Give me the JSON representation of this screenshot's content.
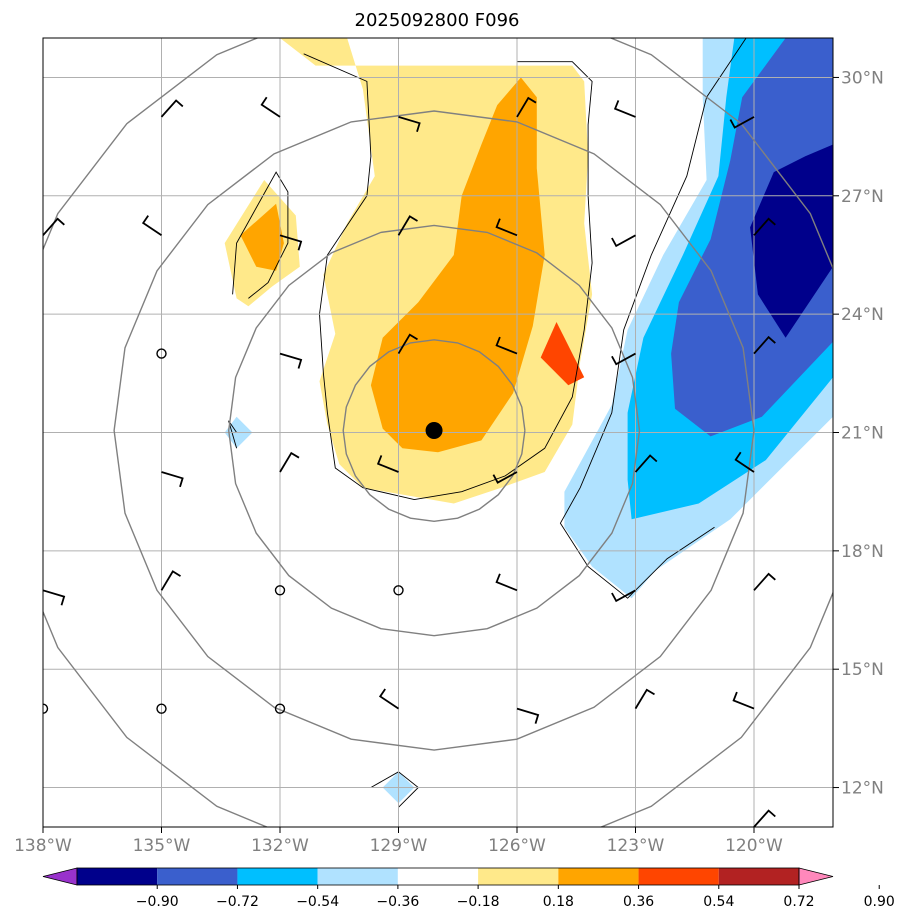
{
  "chart_data": {
    "type": "heatmap",
    "title": "2025092800 F096",
    "xlim": [
      -138.0,
      -118.0
    ],
    "ylim": [
      11.0,
      31.0
    ],
    "x_ticks": [
      {
        "value": -138,
        "label": "138°W"
      },
      {
        "value": -135,
        "label": "135°W"
      },
      {
        "value": -132,
        "label": "132°W"
      },
      {
        "value": -129,
        "label": "129°W"
      },
      {
        "value": -126,
        "label": "126°W"
      },
      {
        "value": -123,
        "label": "123°W"
      },
      {
        "value": -120,
        "label": "120°W"
      }
    ],
    "y_ticks": [
      {
        "value": 30,
        "label": "30°N"
      },
      {
        "value": 27,
        "label": "27°N"
      },
      {
        "value": 24,
        "label": "24°N"
      },
      {
        "value": 21,
        "label": "21°N"
      },
      {
        "value": 18,
        "label": "18°N"
      },
      {
        "value": 15,
        "label": "15°N"
      },
      {
        "value": 12,
        "label": "12°N"
      }
    ],
    "grid": true,
    "center": {
      "lon": -128.1,
      "lat": 21.05
    },
    "range_rings_deg": [
      2.3,
      5.2,
      8.1,
      11.0
    ],
    "colorbar": {
      "location": "bottom",
      "boundaries": [
        "−0.90",
        "−0.72",
        "−0.54",
        "−0.36",
        "−0.18",
        "0.18",
        "0.36",
        "0.54",
        "0.72",
        "0.90"
      ],
      "colors": [
        "#9932cc",
        "#00008b",
        "#3a5fcd",
        "#00bfff",
        "#b0e2ff",
        "#ffffff",
        "#ffe98a",
        "#ffa500",
        "#ff4500",
        "#b22222",
        "#ff88bb"
      ]
    },
    "filled_regions": [
      {
        "level": "−0.36",
        "color": "#b0e2ff",
        "points": [
          [
            -121.3,
            31
          ],
          [
            -118,
            31
          ],
          [
            -118,
            21.4
          ],
          [
            -120.6,
            18.8
          ],
          [
            -122.5,
            17.5
          ],
          [
            -123.1,
            16.8
          ],
          [
            -124.1,
            17.6
          ],
          [
            -124.8,
            18.6
          ],
          [
            -124.8,
            19.5
          ],
          [
            -123.6,
            21.7
          ],
          [
            -123.2,
            23.6
          ],
          [
            -122.3,
            25.5
          ],
          [
            -121.2,
            27.4
          ],
          [
            -121.3,
            29.5
          ]
        ]
      },
      {
        "level": "−0.54",
        "color": "#00bfff",
        "points": [
          [
            -120.5,
            31
          ],
          [
            -118,
            31
          ],
          [
            -118,
            22.4
          ],
          [
            -119.7,
            20.3
          ],
          [
            -121.4,
            19.2
          ],
          [
            -123.1,
            18.8
          ],
          [
            -123.2,
            19.8
          ],
          [
            -123.2,
            21.5
          ],
          [
            -122.8,
            23.4
          ],
          [
            -121.8,
            25.5
          ],
          [
            -120.9,
            27.5
          ],
          [
            -120.7,
            29.5
          ]
        ]
      },
      {
        "level": "−0.72",
        "color": "#3a5fcd",
        "points": [
          [
            -119.2,
            31
          ],
          [
            -118,
            31
          ],
          [
            -118,
            23.3
          ],
          [
            -119.8,
            21.4
          ],
          [
            -121.1,
            20.9
          ],
          [
            -122.0,
            21.6
          ],
          [
            -122.1,
            23.0
          ],
          [
            -121.9,
            24.3
          ],
          [
            -121.1,
            25.9
          ],
          [
            -120.6,
            27.9
          ],
          [
            -120.3,
            29.5
          ]
        ]
      },
      {
        "level": "−0.90",
        "color": "#00008b",
        "points": [
          [
            -118,
            28.3
          ],
          [
            -118,
            25.2
          ],
          [
            -119.2,
            23.4
          ],
          [
            -119.9,
            24.5
          ],
          [
            -120.1,
            26.2
          ],
          [
            -119.5,
            27.6
          ],
          [
            -118.7,
            28.0
          ]
        ]
      },
      {
        "level": "−0.36",
        "color": "#b0e2ff",
        "points": [
          [
            -133.4,
            21.0
          ],
          [
            -133.1,
            21.4
          ],
          [
            -132.7,
            21.0
          ],
          [
            -133.1,
            20.6
          ]
        ]
      },
      {
        "level": "−0.36",
        "color": "#b0e2ff",
        "points": [
          [
            -129.4,
            12.0
          ],
          [
            -129.0,
            12.4
          ],
          [
            -128.6,
            12.0
          ],
          [
            -129.0,
            11.6
          ]
        ]
      },
      {
        "level": "0.18",
        "color": "#ffe98a",
        "points": [
          [
            -131.1,
            30.3
          ],
          [
            -132.0,
            31.0
          ],
          [
            -130.3,
            31.0
          ],
          [
            -129.9,
            29.7
          ],
          [
            -129.6,
            27.5
          ],
          [
            -130.3,
            26.3
          ],
          [
            -130.9,
            25.0
          ],
          [
            -130.6,
            23.5
          ],
          [
            -131.0,
            22.3
          ],
          [
            -130.8,
            21.2
          ],
          [
            -130.5,
            20.2
          ],
          [
            -129.9,
            19.6
          ],
          [
            -127.6,
            19.2
          ],
          [
            -126.4,
            19.6
          ],
          [
            -125.3,
            20.0
          ],
          [
            -124.6,
            21.2
          ],
          [
            -124.4,
            22.8
          ],
          [
            -124.1,
            24.5
          ],
          [
            -124.3,
            26.3
          ],
          [
            -124.2,
            28.0
          ],
          [
            -124.3,
            29.9
          ],
          [
            -124.6,
            30.3
          ],
          [
            -125.7,
            30.3
          ]
        ]
      },
      {
        "level": "0.36",
        "color": "#ffa500",
        "points": [
          [
            -125.9,
            30.0
          ],
          [
            -125.5,
            29.5
          ],
          [
            -125.5,
            27.7
          ],
          [
            -125.3,
            25.5
          ],
          [
            -125.6,
            23.7
          ],
          [
            -126.1,
            22.0
          ],
          [
            -126.9,
            20.8
          ],
          [
            -128.0,
            20.5
          ],
          [
            -128.9,
            20.6
          ],
          [
            -129.4,
            21.1
          ],
          [
            -129.7,
            22.2
          ],
          [
            -129.4,
            23.4
          ],
          [
            -128.5,
            24.3
          ],
          [
            -127.6,
            25.5
          ],
          [
            -127.4,
            27.0
          ],
          [
            -126.9,
            28.3
          ],
          [
            -126.5,
            29.3
          ]
        ]
      },
      {
        "level": "0.54",
        "color": "#ff4500",
        "points": [
          [
            -125.0,
            23.8
          ],
          [
            -125.4,
            22.9
          ],
          [
            -124.7,
            22.2
          ],
          [
            -124.3,
            22.4
          ]
        ]
      },
      {
        "level": "0.18",
        "color": "#ffe98a",
        "points": [
          [
            -133.1,
            24.4
          ],
          [
            -133.4,
            25.8
          ],
          [
            -132.4,
            27.4
          ],
          [
            -131.6,
            26.5
          ],
          [
            -131.5,
            25.2
          ],
          [
            -132.2,
            24.7
          ],
          [
            -132.8,
            24.2
          ]
        ]
      },
      {
        "level": "0.36",
        "color": "#ffa500",
        "points": [
          [
            -132.6,
            25.2
          ],
          [
            -133.0,
            26.0
          ],
          [
            -132.1,
            26.8
          ],
          [
            -131.9,
            25.8
          ],
          [
            -132.1,
            25.1
          ]
        ]
      }
    ],
    "contour_lines": [
      {
        "points": [
          [
            -120.2,
            31
          ],
          [
            -121.2,
            29.5
          ],
          [
            -121.7,
            27.5
          ],
          [
            -122.6,
            25.5
          ],
          [
            -123.3,
            23.6
          ],
          [
            -123.6,
            21.5
          ],
          [
            -124.4,
            19.6
          ],
          [
            -124.9,
            18.7
          ],
          [
            -124.2,
            17.6
          ],
          [
            -123.2,
            16.8
          ],
          [
            -122.2,
            17.8
          ],
          [
            -121.0,
            18.6
          ]
        ]
      },
      {
        "points": [
          [
            -131.4,
            30.6
          ],
          [
            -129.8,
            29.9
          ],
          [
            -129.7,
            28.0
          ],
          [
            -129.8,
            27.0
          ],
          [
            -130.8,
            25.5
          ],
          [
            -131.0,
            24.0
          ],
          [
            -130.9,
            22.5
          ],
          [
            -130.8,
            21.5
          ],
          [
            -130.6,
            20.1
          ],
          [
            -129.9,
            19.6
          ],
          [
            -128.6,
            19.3
          ],
          [
            -127.4,
            19.5
          ],
          [
            -126.3,
            19.9
          ],
          [
            -125.3,
            20.6
          ],
          [
            -124.6,
            21.9
          ],
          [
            -124.3,
            23.6
          ],
          [
            -124.1,
            25.3
          ],
          [
            -124.2,
            27.0
          ],
          [
            -124.2,
            28.8
          ],
          [
            -124.1,
            29.9
          ],
          [
            -124.6,
            30.4
          ],
          [
            -126.0,
            30.4
          ]
        ]
      },
      {
        "points": [
          [
            -133.2,
            24.5
          ],
          [
            -133.1,
            25.8
          ],
          [
            -132.1,
            27.6
          ],
          [
            -131.8,
            27.1
          ],
          [
            -131.8,
            25.8
          ],
          [
            -132.3,
            24.8
          ],
          [
            -132.8,
            24.4
          ]
        ]
      },
      {
        "points": [
          [
            -129.7,
            12.0
          ],
          [
            -129.0,
            12.4
          ],
          [
            -128.5,
            12.0
          ],
          [
            -129.0,
            11.5
          ]
        ]
      },
      {
        "points": [
          [
            -133.1,
            21.0
          ],
          [
            -133.3,
            21.3
          ],
          [
            -133.1,
            20.6
          ]
        ]
      }
    ],
    "wind_barbs": [
      [
        -138,
        29
      ],
      [
        -135,
        29
      ],
      [
        -132,
        29
      ],
      [
        -129,
        29
      ],
      [
        -126,
        29
      ],
      [
        -123,
        29
      ],
      [
        -120,
        29
      ],
      [
        -138,
        26
      ],
      [
        -135,
        26
      ],
      [
        -132,
        26
      ],
      [
        -129,
        26
      ],
      [
        -126,
        26
      ],
      [
        -123,
        26
      ],
      [
        -120,
        26
      ],
      [
        -138,
        23
      ],
      [
        -132,
        23
      ],
      [
        -129,
        23
      ],
      [
        -126,
        23
      ],
      [
        -123,
        23
      ],
      [
        -120,
        23
      ],
      [
        -138,
        20
      ],
      [
        -135,
        20
      ],
      [
        -132,
        20
      ],
      [
        -129,
        20
      ],
      [
        -126,
        20
      ],
      [
        -123,
        20
      ],
      [
        -120,
        20
      ],
      [
        -138,
        17
      ],
      [
        -135,
        17
      ],
      [
        -126,
        17
      ],
      [
        -123,
        17
      ],
      [
        -120,
        17
      ],
      [
        -129,
        14
      ],
      [
        -126,
        14
      ],
      [
        -123,
        14
      ],
      [
        -120,
        14
      ],
      [
        -123,
        11
      ],
      [
        -120,
        11
      ]
    ],
    "calm_points": [
      [
        -135,
        23
      ],
      [
        -132,
        17
      ],
      [
        -129,
        17
      ],
      [
        -138,
        14
      ],
      [
        -135,
        14
      ],
      [
        -132,
        14
      ]
    ]
  }
}
